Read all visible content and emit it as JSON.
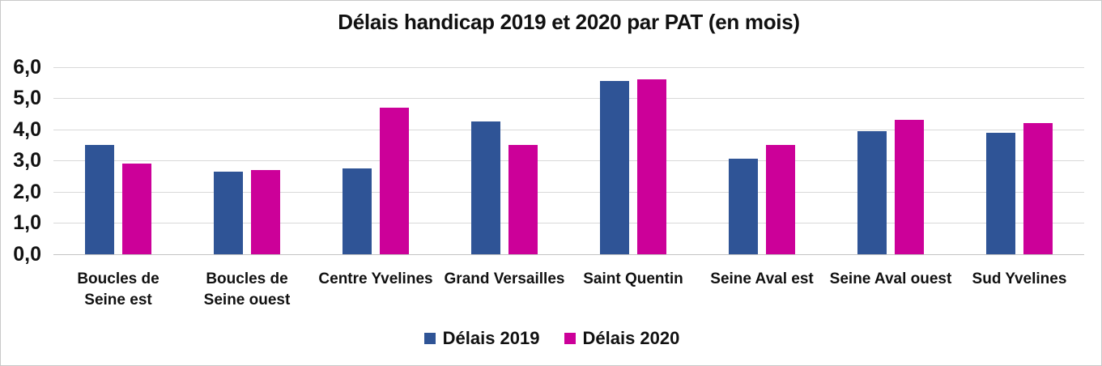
{
  "title": "Délais handicap 2019 et 2020 par PAT (en mois)",
  "colors": {
    "series_2019": "#2F5496",
    "series_2020": "#CC0099",
    "gridline": "#D9D9D9",
    "axis_line": "#C3C3C3",
    "frame_border": "#C9C9C9",
    "text": "#111111"
  },
  "chart_data": {
    "type": "bar",
    "title": "Délais handicap 2019 et 2020 par PAT (en mois)",
    "categories": [
      "Boucles de Seine est",
      "Boucles de Seine ouest",
      "Centre Yvelines",
      "Grand Versailles",
      "Saint Quentin",
      "Seine Aval est",
      "Seine Aval ouest",
      "Sud Yvelines"
    ],
    "category_display_lines": [
      [
        "Boucles de",
        "Seine est"
      ],
      [
        "Boucles de",
        "Seine ouest"
      ],
      [
        "Centre Yvelines"
      ],
      [
        "Grand Versailles"
      ],
      [
        "Saint Quentin"
      ],
      [
        "Seine Aval est"
      ],
      [
        "Seine Aval ouest"
      ],
      [
        "Sud Yvelines"
      ]
    ],
    "series": [
      {
        "name": "Délais 2019",
        "color": "#2F5496",
        "values": [
          3.5,
          2.65,
          2.75,
          4.25,
          5.55,
          3.05,
          3.95,
          3.9
        ]
      },
      {
        "name": "Délais 2020",
        "color": "#CC0099",
        "values": [
          2.9,
          2.7,
          4.7,
          3.5,
          5.6,
          3.5,
          4.3,
          4.2
        ]
      }
    ],
    "xlabel": "",
    "ylabel": "",
    "ylim": [
      0,
      6
    ],
    "ytick_step": 1,
    "ytick_labels": [
      "0,0",
      "1,0",
      "2,0",
      "3,0",
      "4,0",
      "5,0",
      "6,0"
    ],
    "grid": true,
    "legend_position": "bottom"
  }
}
